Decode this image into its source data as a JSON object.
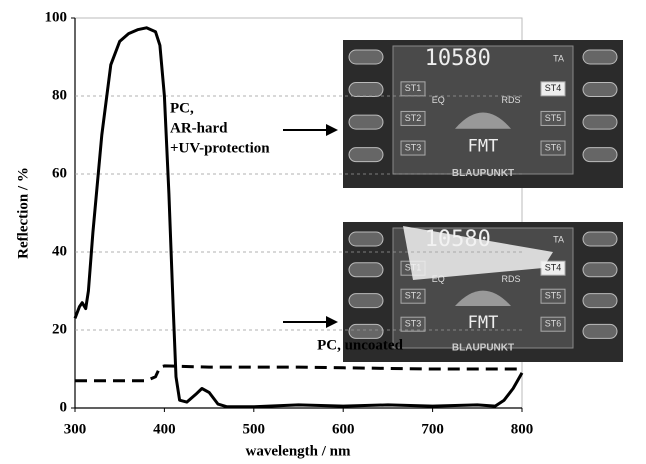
{
  "chart_data": {
    "type": "line",
    "x_label": "wavelength / nm",
    "y_label": "Reflection / %",
    "xlim": [
      300,
      800
    ],
    "xticks": [
      300,
      400,
      500,
      600,
      700,
      800
    ],
    "ylim": [
      0,
      100
    ],
    "yticks": [
      0,
      20,
      40,
      60,
      80,
      100
    ],
    "grid": true,
    "series": [
      {
        "color": "#000000",
        "dash": false,
        "x": [
          300,
          305,
          308,
          312,
          315,
          320,
          330,
          340,
          350,
          360,
          370,
          380,
          390,
          395,
          400,
          405,
          410,
          413,
          417,
          425,
          435,
          442,
          450,
          460,
          470,
          500,
          550,
          600,
          650,
          700,
          750,
          770,
          780,
          790,
          800
        ],
        "values": [
          23,
          26,
          27,
          25.5,
          30,
          45,
          70,
          88,
          94,
          96,
          97,
          97.5,
          96.5,
          93,
          80,
          55,
          25,
          8,
          2,
          1.5,
          3.5,
          5,
          4,
          1,
          0.3,
          0.3,
          0.8,
          0.5,
          0.8,
          0.5,
          0.8,
          0.5,
          2,
          5,
          9
        ]
      },
      {
        "color": "#000000",
        "dash": true,
        "x": [
          300,
          350,
          380,
          390,
          395,
          400,
          450,
          500,
          550,
          600,
          700,
          800
        ],
        "values": [
          7,
          7,
          7,
          8,
          10.5,
          10.8,
          10.5,
          10.5,
          10.5,
          10.3,
          10,
          10
        ]
      }
    ],
    "annotations": [
      "PC,",
      "AR-hard",
      "+UV-protection",
      "PC, uncoated"
    ],
    "insets": [
      {
        "labels": [
          "10580",
          "TA",
          "ST1",
          "ST2",
          "ST3",
          "ST4",
          "ST5",
          "ST6",
          "FMT",
          "EQ",
          "RDS",
          "BLAUPUNKT"
        ]
      },
      {
        "labels": [
          "10580",
          "TA",
          "ST1",
          "ST2",
          "ST3",
          "ST4",
          "ST5",
          "ST6",
          "FMT",
          "EQ",
          "RDS",
          "BLAUPUNKT"
        ]
      }
    ]
  }
}
